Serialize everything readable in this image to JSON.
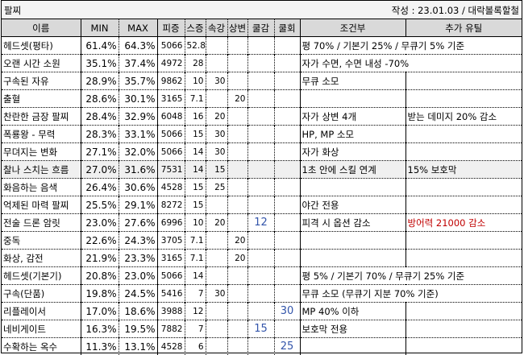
{
  "title": "팔찌",
  "author": "작성 : 23.01.03 / 대락볼록할철",
  "headers": [
    "이름",
    "MIN",
    "MAX",
    "피증",
    "스증",
    "속강",
    "상변",
    "쿨감",
    "쿨회",
    "조건부",
    "추가 유틸"
  ],
  "rows": [
    {
      "name": "헤드셋(평타)",
      "min": "61.4%",
      "max": "64.3%",
      "pj": "5066",
      "sj": "52.8",
      "sg": "",
      "sb": "",
      "cg": "",
      "ch": "",
      "cond": "평 70% / 기본기 25% / 무큐기 5% 기준",
      "util": "",
      "span": true
    },
    {
      "name": "오랜 시간 소원",
      "min": "35.1%",
      "max": "37.4%",
      "pj": "4972",
      "sj": "28",
      "sg": "",
      "sb": "",
      "cg": "",
      "ch": "",
      "cond": "자가 수면, 수면 내성 -70%",
      "util": "",
      "span": true
    },
    {
      "name": "구속된 자유",
      "min": "28.9%",
      "max": "35.7%",
      "pj": "9862",
      "sj": "10",
      "sg": "30",
      "sb": "",
      "cg": "",
      "ch": "",
      "cond": "무큐 소모",
      "util": ""
    },
    {
      "name": "출혈",
      "min": "28.6%",
      "max": "30.1%",
      "pj": "3165",
      "sj": "7.1",
      "sg": "",
      "sb": "20",
      "cg": "",
      "ch": "",
      "cond": "",
      "util": ""
    },
    {
      "name": "찬란한 금장 팔찌",
      "min": "28.4%",
      "max": "32.9%",
      "pj": "6048",
      "sj": "16",
      "sg": "20",
      "sb": "",
      "cg": "",
      "ch": "",
      "cond": "자가 상변 4개",
      "util": "받는 데미지 20% 감소"
    },
    {
      "name": "폭룡왕 - 무력",
      "min": "28.3%",
      "max": "33.1%",
      "pj": "5066",
      "sj": "15",
      "sg": "30",
      "sb": "",
      "cg": "",
      "ch": "",
      "cond": "HP, MP 소모",
      "util": ""
    },
    {
      "name": "무뎌지는 변화",
      "min": "27.1%",
      "max": "32.0%",
      "pj": "5066",
      "sj": "14",
      "sg": "30",
      "sb": "",
      "cg": "",
      "ch": "",
      "cond": "자가 화상",
      "util": ""
    },
    {
      "name": "찰나 스치는 흐름",
      "min": "27.0%",
      "max": "31.6%",
      "pj": "7531",
      "sj": "14",
      "sg": "15",
      "sb": "",
      "cg": "",
      "ch": "",
      "cond": "1초 안에 스킬 연계",
      "util": "15% 보호막",
      "highlight": true
    },
    {
      "name": "화음하는 음색",
      "min": "26.4%",
      "max": "30.6%",
      "pj": "4528",
      "sj": "15",
      "sg": "25",
      "sb": "",
      "cg": "",
      "ch": "",
      "cond": "",
      "util": ""
    },
    {
      "name": "억제된 마력 팔찌",
      "min": "25.5%",
      "max": "29.1%",
      "pj": "8272",
      "sj": "15",
      "sg": "",
      "sb": "",
      "cg": "",
      "ch": "",
      "cond": "야간 전용",
      "util": ""
    },
    {
      "name": "전술 드론 암릿",
      "min": "23.0%",
      "max": "27.6%",
      "pj": "6996",
      "sj": "10",
      "sg": "20",
      "sb": "",
      "cg": "12",
      "ch": "",
      "cond": "피격 시 옵션 감소",
      "util": "방어력 21000 감소",
      "utilRed": true
    },
    {
      "name": "중독",
      "min": "22.6%",
      "max": "24.3%",
      "pj": "3705",
      "sj": "7.1",
      "sg": "",
      "sb": "20",
      "cg": "",
      "ch": "",
      "cond": "",
      "util": ""
    },
    {
      "name": "화상, 감전",
      "min": "21.9%",
      "max": "23.3%",
      "pj": "3165",
      "sj": "7.1",
      "sg": "",
      "sb": "20",
      "cg": "",
      "ch": "",
      "cond": "",
      "util": ""
    },
    {
      "name": "헤드셋(기본기)",
      "min": "20.8%",
      "max": "23.0%",
      "pj": "5066",
      "sj": "14",
      "sg": "",
      "sb": "",
      "cg": "",
      "ch": "",
      "cond": "평 5% / 기본기 70% / 무큐기 25% 기준",
      "util": "",
      "span": true
    },
    {
      "name": "구속(단품)",
      "min": "19.8%",
      "max": "24.5%",
      "pj": "5416",
      "sj": "7",
      "sg": "30",
      "sb": "",
      "cg": "",
      "ch": "",
      "cond": "무큐 소모 (무큐기 지분 70% 기준)",
      "util": "",
      "span": true
    },
    {
      "name": "리플레이서",
      "min": "17.0%",
      "max": "18.6%",
      "pj": "3988",
      "sj": "12",
      "sg": "",
      "sb": "",
      "cg": "",
      "ch": "30",
      "cond": "MP 40% 이하",
      "util": ""
    },
    {
      "name": "네비게이트",
      "min": "16.3%",
      "max": "19.5%",
      "pj": "7882",
      "sj": "7",
      "sg": "",
      "sb": "",
      "cg": "15",
      "ch": "",
      "cond": "보호막 전용",
      "util": ""
    },
    {
      "name": "수확하는 옥수",
      "min": "11.3%",
      "max": "13.1%",
      "pj": "4528",
      "sj": "6",
      "sg": "",
      "sb": "",
      "cg": "",
      "ch": "25",
      "cond": "",
      "util": ""
    }
  ]
}
